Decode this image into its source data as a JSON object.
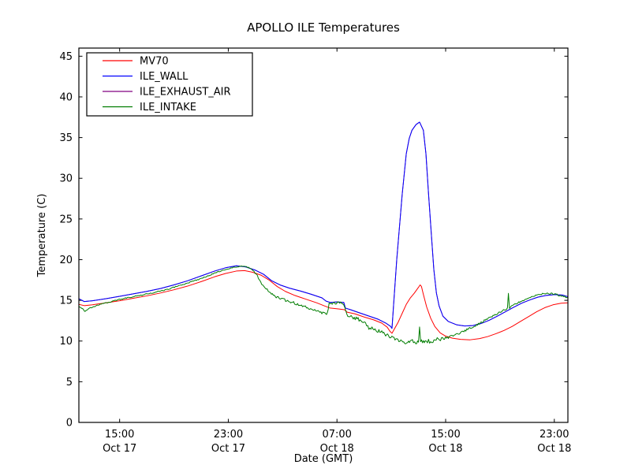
{
  "figure": {
    "background": "#ffffff",
    "frame_color": "#000000",
    "text_color": "#000000"
  },
  "chart_data": {
    "type": "line",
    "title": "APOLLO ILE Temperatures",
    "xlabel": "Date (GMT)",
    "ylabel": "Temperature (C)",
    "x_unit_note": "hours since Oct 17 12:00 GMT",
    "x_range_hours": [
      0,
      36
    ],
    "ylim": [
      0,
      46
    ],
    "yticks": [
      0,
      5,
      10,
      15,
      20,
      25,
      30,
      35,
      40,
      45
    ],
    "xticks": [
      {
        "t": 3,
        "time": "15:00",
        "date": "Oct 17"
      },
      {
        "t": 11,
        "time": "23:00",
        "date": "Oct 17"
      },
      {
        "t": 19,
        "time": "07:00",
        "date": "Oct 18"
      },
      {
        "t": 27,
        "time": "15:00",
        "date": "Oct 18"
      },
      {
        "t": 35,
        "time": "23:00",
        "date": "Oct 18"
      }
    ],
    "grid": false,
    "legend_position": "upper-left",
    "series": [
      {
        "name": "MV70",
        "color": "#ff0000",
        "points": [
          [
            0,
            14.5
          ],
          [
            0.4,
            14.35
          ],
          [
            1,
            14.45
          ],
          [
            2,
            14.7
          ],
          [
            3,
            14.95
          ],
          [
            4,
            15.25
          ],
          [
            5,
            15.55
          ],
          [
            6,
            15.9
          ],
          [
            7,
            16.3
          ],
          [
            8,
            16.75
          ],
          [
            9,
            17.3
          ],
          [
            10,
            17.9
          ],
          [
            10.8,
            18.3
          ],
          [
            11.6,
            18.6
          ],
          [
            12.2,
            18.65
          ],
          [
            12.8,
            18.45
          ],
          [
            13.4,
            18.1
          ],
          [
            14,
            17.5
          ],
          [
            14.6,
            16.7
          ],
          [
            15.2,
            16.1
          ],
          [
            15.9,
            15.6
          ],
          [
            16.7,
            15.15
          ],
          [
            17.5,
            14.7
          ],
          [
            18.1,
            14.3
          ],
          [
            18.5,
            14.05
          ],
          [
            19.1,
            13.95
          ],
          [
            19.55,
            13.85
          ],
          [
            19.75,
            13.55
          ],
          [
            20.3,
            13.35
          ],
          [
            21,
            12.95
          ],
          [
            21.7,
            12.6
          ],
          [
            22.3,
            12.2
          ],
          [
            22.7,
            11.7
          ],
          [
            22.9,
            11.2
          ],
          [
            23.05,
            10.95
          ],
          [
            23.2,
            11.4
          ],
          [
            23.5,
            12.3
          ],
          [
            23.8,
            13.4
          ],
          [
            24.1,
            14.5
          ],
          [
            24.4,
            15.3
          ],
          [
            24.7,
            15.9
          ],
          [
            25,
            16.6
          ],
          [
            25.12,
            16.9
          ],
          [
            25.22,
            16.7
          ],
          [
            25.35,
            15.8
          ],
          [
            25.6,
            14.2
          ],
          [
            25.9,
            12.8
          ],
          [
            26.2,
            11.8
          ],
          [
            26.6,
            11
          ],
          [
            27,
            10.6
          ],
          [
            27.5,
            10.35
          ],
          [
            28.1,
            10.2
          ],
          [
            28.8,
            10.15
          ],
          [
            29.5,
            10.3
          ],
          [
            30.1,
            10.55
          ],
          [
            30.7,
            10.9
          ],
          [
            31.3,
            11.3
          ],
          [
            31.9,
            11.8
          ],
          [
            32.5,
            12.4
          ],
          [
            33.1,
            13
          ],
          [
            33.7,
            13.6
          ],
          [
            34.3,
            14.1
          ],
          [
            34.9,
            14.45
          ],
          [
            35.5,
            14.65
          ],
          [
            36,
            14.7
          ]
        ]
      },
      {
        "name": "ILE_WALL",
        "color": "#0000ff",
        "points": [
          [
            0,
            15.2
          ],
          [
            0.4,
            14.85
          ],
          [
            1,
            14.95
          ],
          [
            2,
            15.2
          ],
          [
            3,
            15.5
          ],
          [
            4,
            15.8
          ],
          [
            5,
            16.1
          ],
          [
            6,
            16.45
          ],
          [
            7,
            16.9
          ],
          [
            8,
            17.4
          ],
          [
            9,
            18
          ],
          [
            10,
            18.6
          ],
          [
            10.8,
            19
          ],
          [
            11.6,
            19.25
          ],
          [
            12.3,
            19.1
          ],
          [
            13,
            18.7
          ],
          [
            13.6,
            18.2
          ],
          [
            14.2,
            17.4
          ],
          [
            14.8,
            16.9
          ],
          [
            15.5,
            16.5
          ],
          [
            16.3,
            16.15
          ],
          [
            17.1,
            15.75
          ],
          [
            17.9,
            15.3
          ],
          [
            18.2,
            14.9
          ],
          [
            18.5,
            14.75
          ],
          [
            19,
            14.8
          ],
          [
            19.5,
            14.75
          ],
          [
            19.62,
            14.05
          ],
          [
            20,
            13.85
          ],
          [
            20.6,
            13.5
          ],
          [
            21.3,
            13.1
          ],
          [
            22,
            12.7
          ],
          [
            22.6,
            12.2
          ],
          [
            22.95,
            11.8
          ],
          [
            23.05,
            11.55
          ],
          [
            23.15,
            14
          ],
          [
            23.4,
            20
          ],
          [
            23.8,
            28
          ],
          [
            24.1,
            33
          ],
          [
            24.32,
            34.9
          ],
          [
            24.52,
            35.9
          ],
          [
            24.82,
            36.6
          ],
          [
            25.08,
            36.9
          ],
          [
            25.36,
            35.9
          ],
          [
            25.55,
            33
          ],
          [
            25.74,
            28.1
          ],
          [
            25.94,
            23.3
          ],
          [
            26.13,
            18.8
          ],
          [
            26.32,
            15.9
          ],
          [
            26.52,
            14.3
          ],
          [
            26.8,
            13.05
          ],
          [
            27.2,
            12.4
          ],
          [
            27.8,
            12
          ],
          [
            28.4,
            11.85
          ],
          [
            29,
            11.9
          ],
          [
            29.6,
            12.15
          ],
          [
            30.2,
            12.55
          ],
          [
            30.8,
            13.05
          ],
          [
            31.4,
            13.6
          ],
          [
            32,
            14.15
          ],
          [
            32.6,
            14.65
          ],
          [
            33.2,
            15.05
          ],
          [
            33.8,
            15.4
          ],
          [
            34.4,
            15.6
          ],
          [
            35,
            15.7
          ],
          [
            35.6,
            15.65
          ],
          [
            36,
            15.45
          ]
        ]
      },
      {
        "name": "ILE_EXHAUST_AIR",
        "color": "#800080",
        "points_ref": "ILE_WALL",
        "note": "curve coincides with ILE_WALL (hidden beneath it)"
      },
      {
        "name": "ILE_INTAKE",
        "color": "#007d00",
        "points": [
          [
            0,
            14.25
          ],
          [
            0.25,
            14
          ],
          [
            0.45,
            13.6
          ],
          [
            0.7,
            13.95
          ],
          [
            1.1,
            14.25
          ],
          [
            1.8,
            14.6
          ],
          [
            2.6,
            14.95
          ],
          [
            3.5,
            15.3
          ],
          [
            4.5,
            15.6
          ],
          [
            5.5,
            15.95
          ],
          [
            6.5,
            16.35
          ],
          [
            7.5,
            16.85
          ],
          [
            8.5,
            17.4
          ],
          [
            9.5,
            18
          ],
          [
            10.4,
            18.6
          ],
          [
            11.2,
            19
          ],
          [
            11.9,
            19.2
          ],
          [
            12.5,
            19.05
          ],
          [
            12.9,
            18.6
          ],
          [
            13.3,
            17.5
          ],
          [
            13.7,
            16.5
          ],
          [
            14.1,
            15.9
          ],
          [
            14.6,
            15.35
          ],
          [
            15.3,
            14.95
          ],
          [
            16.1,
            14.55
          ],
          [
            16.9,
            14.05
          ],
          [
            17.6,
            13.65
          ],
          [
            18.1,
            13.35
          ],
          [
            18.3,
            13.4
          ],
          [
            18.42,
            14.55
          ],
          [
            18.8,
            14.65
          ],
          [
            19.2,
            14.7
          ],
          [
            19.5,
            14.55
          ],
          [
            19.65,
            13.6
          ],
          [
            19.8,
            13.05
          ],
          [
            20.2,
            12.9
          ],
          [
            20.7,
            12.6
          ],
          [
            21.1,
            12.15
          ],
          [
            21.35,
            11.6
          ],
          [
            21.8,
            11.45
          ],
          [
            22.3,
            11.05
          ],
          [
            22.8,
            10.6
          ],
          [
            23.2,
            10.35
          ],
          [
            23.7,
            10.05
          ],
          [
            24.2,
            9.85
          ],
          [
            24.55,
            10.1
          ],
          [
            24.8,
            9.6
          ],
          [
            25,
            9.85
          ],
          [
            25.08,
            11.5
          ],
          [
            25.16,
            9.9
          ],
          [
            25.5,
            10
          ],
          [
            25.9,
            9.95
          ],
          [
            26.3,
            10.15
          ],
          [
            26.7,
            10.3
          ],
          [
            27.2,
            10.45
          ],
          [
            27.7,
            10.75
          ],
          [
            28.2,
            11.1
          ],
          [
            28.7,
            11.5
          ],
          [
            29.2,
            11.9
          ],
          [
            29.7,
            12.35
          ],
          [
            30.2,
            12.85
          ],
          [
            30.7,
            13.3
          ],
          [
            31.2,
            13.75
          ],
          [
            31.55,
            14
          ],
          [
            31.62,
            15.85
          ],
          [
            31.7,
            14.1
          ],
          [
            32.1,
            14.5
          ],
          [
            32.6,
            14.95
          ],
          [
            33.1,
            15.3
          ],
          [
            33.7,
            15.6
          ],
          [
            34.2,
            15.8
          ],
          [
            34.7,
            15.85
          ],
          [
            35.2,
            15.7
          ],
          [
            35.6,
            15.5
          ],
          [
            36,
            15.35
          ]
        ],
        "noise_amplitude_schedule": [
          [
            0,
            0.07
          ],
          [
            12.5,
            0.16
          ],
          [
            19.6,
            0.22
          ],
          [
            23,
            0.25
          ],
          [
            27.5,
            0.12
          ],
          [
            31,
            0.1
          ]
        ]
      }
    ]
  },
  "legend": {
    "items": [
      {
        "label": "MV70",
        "color": "#ff0000"
      },
      {
        "label": "ILE_WALL",
        "color": "#0000ff"
      },
      {
        "label": "ILE_EXHAUST_AIR",
        "color": "#800080"
      },
      {
        "label": "ILE_INTAKE",
        "color": "#007d00"
      }
    ]
  }
}
